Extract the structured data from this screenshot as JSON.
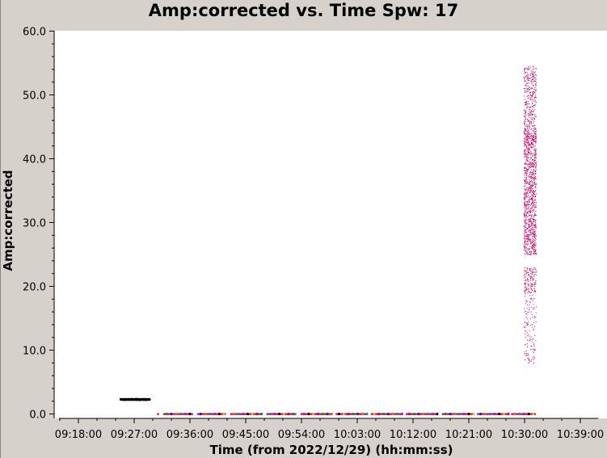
{
  "chart_data": {
    "type": "scatter",
    "title": "Amp:corrected vs. Time Spw: 17",
    "xlabel": "Time (from 2022/12/29) (hh:mm:ss)",
    "ylabel": "Amp:corrected",
    "ylim": [
      0,
      60
    ],
    "xlim": [
      "09:16:10",
      "10:41:40"
    ],
    "y_ticks": [
      "0.0",
      "10.0",
      "20.0",
      "30.0",
      "40.0",
      "50.0",
      "60.0"
    ],
    "x_ticks": [
      "09:18:00",
      "09:27:00",
      "09:36:00",
      "09:45:00",
      "09:54:00",
      "10:03:00",
      "10:12:00",
      "10:21:00",
      "10:30:00",
      "10:39:00"
    ],
    "grid": false,
    "series": [
      {
        "color": "#000000",
        "x_range": [
          "09:24:40",
          "09:29:30"
        ],
        "y_range": [
          2.2,
          2.5
        ]
      },
      {
        "color": "#cc0066",
        "x_range": [
          "10:29:50",
          "10:31:50"
        ],
        "y_range": [
          8,
          54.5
        ]
      },
      {
        "color": "#cc0066",
        "x_range": [
          "09:30:40",
          "10:31:50"
        ],
        "y_range": [
          0,
          0.3
        ],
        "scans": [
          {
            "start": "09:30:40",
            "end": "09:31:00"
          },
          {
            "start": "09:31:40",
            "end": "09:36:30"
          },
          {
            "start": "09:37:10",
            "end": "09:41:50"
          },
          {
            "start": "09:42:30",
            "end": "09:47:40"
          },
          {
            "start": "09:48:20",
            "end": "09:53:10"
          },
          {
            "start": "09:53:50",
            "end": "09:58:50"
          },
          {
            "start": "09:59:30",
            "end": "10:04:30"
          },
          {
            "start": "10:05:10",
            "end": "10:10:10"
          },
          {
            "start": "10:10:50",
            "end": "10:16:00"
          },
          {
            "start": "10:16:40",
            "end": "10:21:40"
          },
          {
            "start": "10:22:20",
            "end": "10:27:20"
          },
          {
            "start": "10:27:50",
            "end": "10:31:50"
          }
        ],
        "marker_colors": [
          "#cc0066",
          "#00a000",
          "#0033cc",
          "#e67300",
          "#009999",
          "#993399",
          "#000000",
          "#cccc00"
        ]
      }
    ]
  }
}
